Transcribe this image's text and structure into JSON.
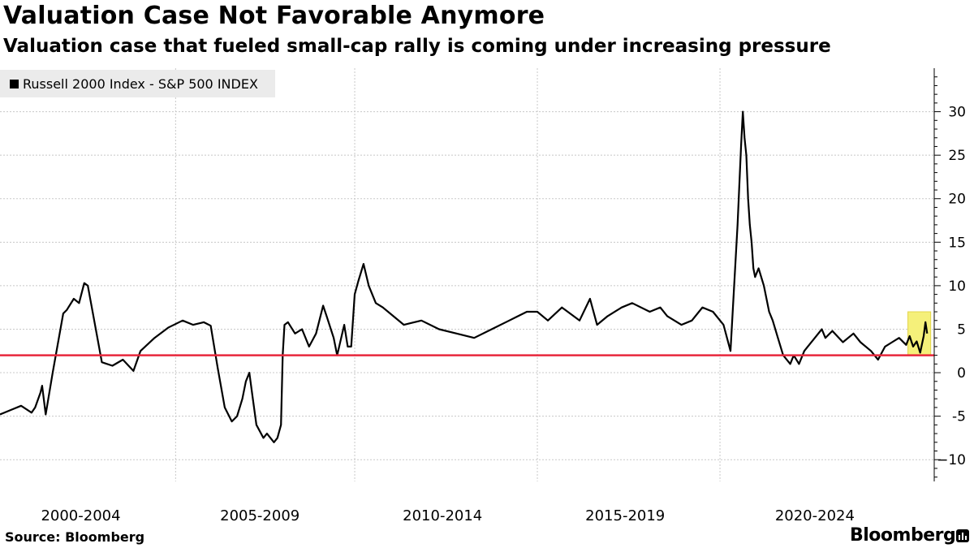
{
  "title": "Valuation Case Not Favorable Anymore",
  "subtitle": "Valuation case that fueled small-cap rally is coming under increasing pressure",
  "legend": {
    "label": "Russell 2000 Index - S&P 500 INDEX",
    "color": "#000000"
  },
  "source": "Source: Bloomberg",
  "brand": "Bloomberg",
  "chart_data": {
    "type": "line",
    "title": "Valuation Case Not Favorable Anymore",
    "subtitle": "Valuation case that fueled small-cap rally is coming under increasing pressure",
    "xlabel": "",
    "ylabel": "",
    "xlim": [
      1999.0,
      2025.6
    ],
    "ylim": [
      -12.5,
      35
    ],
    "yticks": [
      -10,
      -5,
      0,
      5,
      10,
      15,
      20,
      25,
      30
    ],
    "ytick_labels": [
      "−10",
      "-5",
      "0",
      "5",
      "10",
      "15",
      "20",
      "25",
      "30"
    ],
    "x_categories": [
      "2000-2004",
      "2005-2009",
      "2010-2014",
      "2015-2019",
      "2020-2024"
    ],
    "x_category_centers": [
      2001.3,
      2006.4,
      2011.6,
      2016.8,
      2022.2
    ],
    "x_gridlines": [
      2004.0,
      2009.1,
      2014.3,
      2019.5
    ],
    "grid": true,
    "legend_position": "top-left",
    "reference_line": {
      "y": 2.0,
      "color": "#e8273c"
    },
    "highlight": {
      "x": [
        2024.85,
        2025.5
      ],
      "y": [
        2.0,
        7.0
      ],
      "color": "#f5f07a"
    },
    "series": [
      {
        "name": "Russell 2000 Index - S&P 500 INDEX",
        "color": "#000000",
        "x": [
          1999.0,
          1999.3,
          1999.6,
          1999.9,
          2000.0,
          2000.15,
          2000.2,
          2000.3,
          2000.5,
          2000.8,
          2000.9,
          2001.1,
          2001.25,
          2001.4,
          2001.5,
          2001.9,
          2002.2,
          2002.5,
          2002.8,
          2003.0,
          2003.4,
          2003.8,
          2004.2,
          2004.5,
          2004.8,
          2005.0,
          2005.2,
          2005.4,
          2005.6,
          2005.75,
          2005.9,
          2006.0,
          2006.1,
          2006.2,
          2006.3,
          2006.5,
          2006.6,
          2006.8,
          2006.9,
          2007.0,
          2007.05,
          2007.1,
          2007.2,
          2007.4,
          2007.6,
          2007.8,
          2008.0,
          2008.2,
          2008.3,
          2008.5,
          2008.6,
          2008.8,
          2008.9,
          2009.0,
          2009.1,
          2009.2,
          2009.35,
          2009.5,
          2009.7,
          2009.9,
          2010.2,
          2010.5,
          2011.0,
          2011.5,
          2012.0,
          2012.5,
          2013.0,
          2013.5,
          2014.0,
          2014.3,
          2014.6,
          2015.0,
          2015.5,
          2015.8,
          2016.0,
          2016.3,
          2016.7,
          2017.0,
          2017.5,
          2017.8,
          2018.0,
          2018.4,
          2018.7,
          2018.9,
          2019.0,
          2019.3,
          2019.6,
          2019.8,
          2020.0,
          2020.1,
          2020.15,
          2020.2,
          2020.25,
          2020.3,
          2020.35,
          2020.4,
          2020.45,
          2020.5,
          2020.6,
          2020.75,
          2020.9,
          2021.0,
          2021.15,
          2021.3,
          2021.5,
          2021.6,
          2021.75,
          2021.9,
          2022.0,
          2022.2,
          2022.4,
          2022.5,
          2022.7,
          2023.0,
          2023.3,
          2023.5,
          2023.8,
          2024.0,
          2024.2,
          2024.4,
          2024.6,
          2024.8,
          2024.9,
          2025.0,
          2025.1,
          2025.2,
          2025.3,
          2025.35,
          2025.4
        ],
        "y": [
          -4.8,
          -4.3,
          -3.8,
          -4.6,
          -4.0,
          -2.3,
          -1.5,
          -4.8,
          0.0,
          6.8,
          7.2,
          8.5,
          8.0,
          10.3,
          10.0,
          1.2,
          0.8,
          1.5,
          0.2,
          2.5,
          4.0,
          5.2,
          6.0,
          5.5,
          5.8,
          5.4,
          0.5,
          -4.0,
          -5.6,
          -5.0,
          -3.0,
          -1.0,
          0.0,
          -3.0,
          -6.0,
          -7.5,
          -7.0,
          -8.0,
          -7.5,
          -6.0,
          2.0,
          5.5,
          5.8,
          4.5,
          5.0,
          3.0,
          4.5,
          7.7,
          6.5,
          4.0,
          2.0,
          5.5,
          3.0,
          3.0,
          9.0,
          10.5,
          12.5,
          10.0,
          8.0,
          7.5,
          6.5,
          5.5,
          6.0,
          5.0,
          4.5,
          4.0,
          5.0,
          6.0,
          7.0,
          7.0,
          6.0,
          7.5,
          6.0,
          8.5,
          5.5,
          6.5,
          7.5,
          8.0,
          7.0,
          7.5,
          6.5,
          5.5,
          6.0,
          7.0,
          7.5,
          7.0,
          5.5,
          2.5,
          17.0,
          26.0,
          30.0,
          27.0,
          25.0,
          20.0,
          17.0,
          15.0,
          12.0,
          11.0,
          12.0,
          10.0,
          7.0,
          6.0,
          4.0,
          2.0,
          1.0,
          2.0,
          1.0,
          2.5,
          3.0,
          4.0,
          5.0,
          4.0,
          4.8,
          3.5,
          4.5,
          3.5,
          2.5,
          1.5,
          3.0,
          3.5,
          4.0,
          3.2,
          4.2,
          3.0,
          3.6,
          2.3,
          4.2,
          5.8,
          4.5
        ]
      }
    ]
  }
}
